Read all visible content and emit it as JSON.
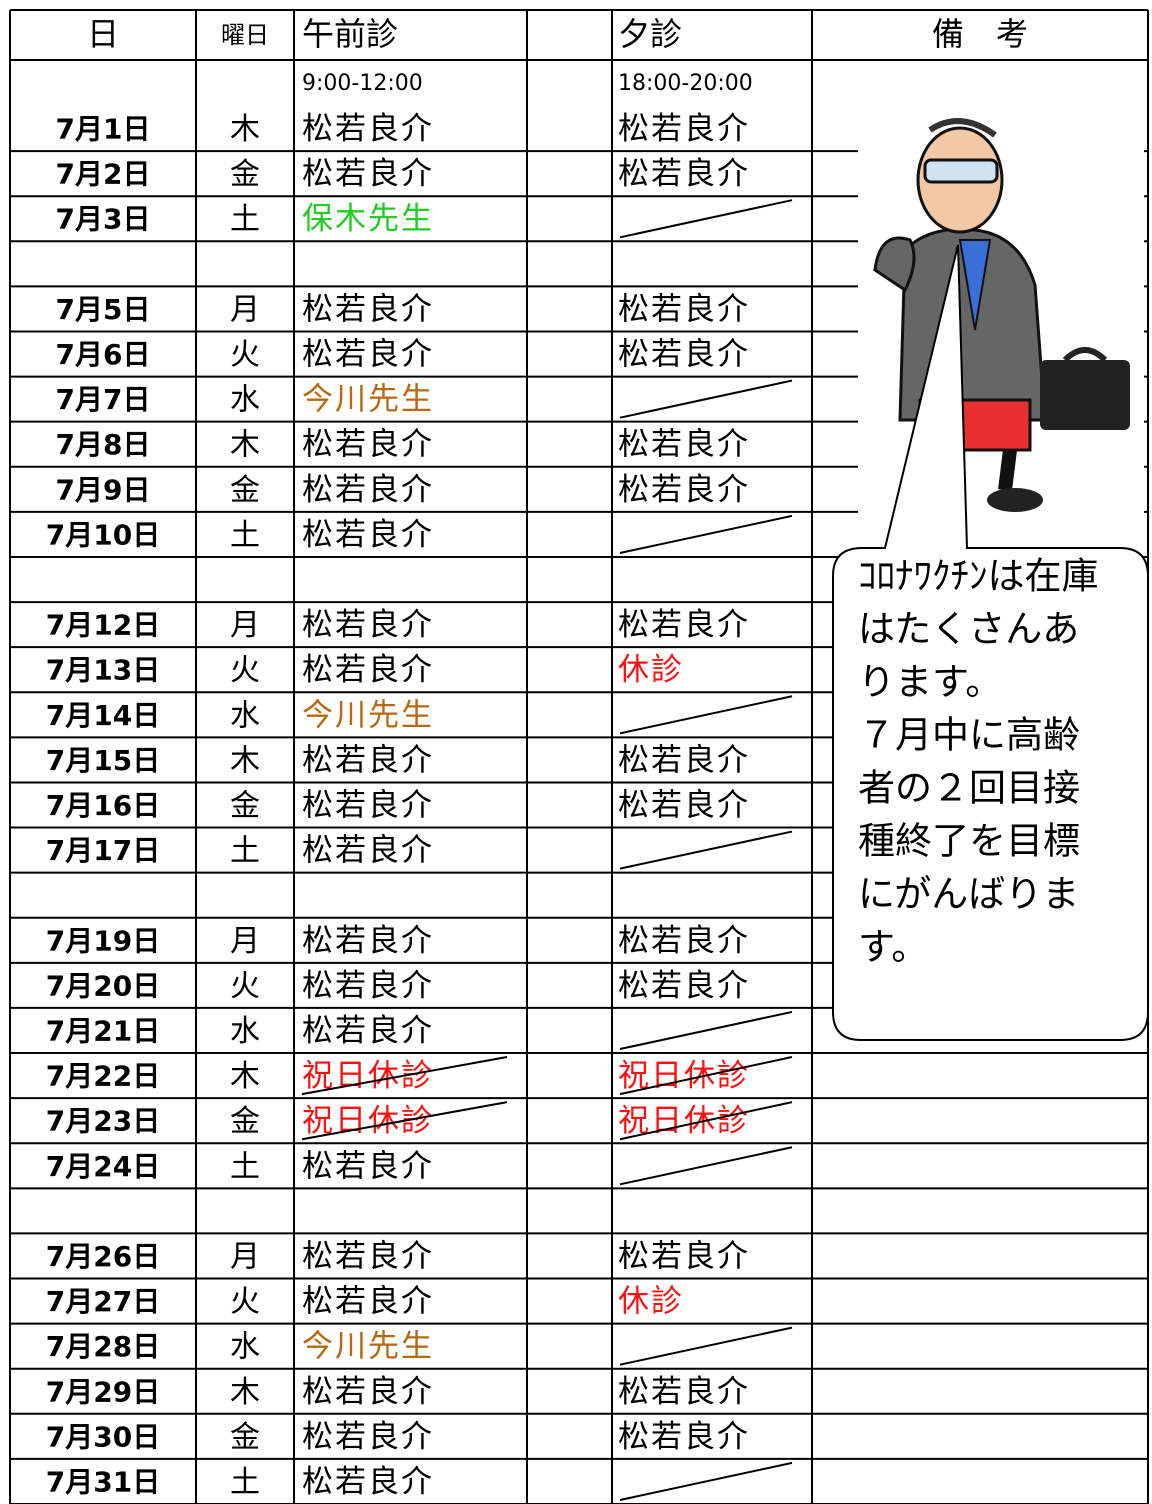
{
  "header": {
    "date": "日",
    "weekday": "曜日",
    "am": "午前診",
    "pm": "夕診",
    "note": "備　考"
  },
  "hours": {
    "am": "9:00-12:00",
    "pm": "18:00-20:00"
  },
  "table": {
    "rows": [
      {
        "date": "7月1日",
        "weekday": "木",
        "am": {
          "text": "松若良介"
        },
        "pm": {
          "text": "松若良介"
        }
      },
      {
        "date": "7月2日",
        "weekday": "金",
        "am": {
          "text": "松若良介"
        },
        "pm": {
          "text": "松若良介"
        }
      },
      {
        "date": "7月3日",
        "weekday": "土",
        "am": {
          "text": "保木先生",
          "color": "#22cc22"
        },
        "pm": {
          "strike": true
        }
      },
      {
        "date": null,
        "weekday": null,
        "am": null,
        "pm": null
      },
      {
        "date": "7月5日",
        "weekday": "月",
        "am": {
          "text": "松若良介"
        },
        "pm": {
          "text": "松若良介"
        }
      },
      {
        "date": "7月6日",
        "weekday": "火",
        "am": {
          "text": "松若良介"
        },
        "pm": {
          "text": "松若良介"
        }
      },
      {
        "date": "7月7日",
        "weekday": "水",
        "am": {
          "text": "今川先生",
          "color": "#b8680f"
        },
        "pm": {
          "strike": true
        }
      },
      {
        "date": "7月8日",
        "weekday": "木",
        "am": {
          "text": "松若良介"
        },
        "pm": {
          "text": "松若良介"
        }
      },
      {
        "date": "7月9日",
        "weekday": "金",
        "am": {
          "text": "松若良介"
        },
        "pm": {
          "text": "松若良介"
        }
      },
      {
        "date": "7月10日",
        "weekday": "土",
        "am": {
          "text": "松若良介"
        },
        "pm": {
          "strike": true
        }
      },
      {
        "date": null,
        "weekday": null,
        "am": null,
        "pm": null
      },
      {
        "date": "7月12日",
        "weekday": "月",
        "am": {
          "text": "松若良介"
        },
        "pm": {
          "text": "松若良介"
        }
      },
      {
        "date": "7月13日",
        "weekday": "火",
        "am": {
          "text": "松若良介"
        },
        "pm": {
          "text": "休診",
          "color": "#ff1010"
        }
      },
      {
        "date": "7月14日",
        "weekday": "水",
        "am": {
          "text": "今川先生",
          "color": "#b8680f"
        },
        "pm": {
          "strike": true
        }
      },
      {
        "date": "7月15日",
        "weekday": "木",
        "am": {
          "text": "松若良介"
        },
        "pm": {
          "text": "松若良介"
        }
      },
      {
        "date": "7月16日",
        "weekday": "金",
        "am": {
          "text": "松若良介"
        },
        "pm": {
          "text": "松若良介"
        }
      },
      {
        "date": "7月17日",
        "weekday": "土",
        "am": {
          "text": "松若良介"
        },
        "pm": {
          "strike": true
        }
      },
      {
        "date": null,
        "weekday": null,
        "am": null,
        "pm": null
      },
      {
        "date": "7月19日",
        "weekday": "月",
        "am": {
          "text": "松若良介"
        },
        "pm": {
          "text": "松若良介"
        }
      },
      {
        "date": "7月20日",
        "weekday": "火",
        "am": {
          "text": "松若良介"
        },
        "pm": {
          "text": "松若良介"
        }
      },
      {
        "date": "7月21日",
        "weekday": "水",
        "am": {
          "text": "松若良介"
        },
        "pm": {
          "strike": true
        }
      },
      {
        "date": "7月22日",
        "weekday": "木",
        "am": {
          "text": "祝日休診",
          "color": "#ff1010",
          "strike": true
        },
        "pm": {
          "text": "祝日休診",
          "color": "#ff1010",
          "strike": true
        }
      },
      {
        "date": "7月23日",
        "weekday": "金",
        "am": {
          "text": "祝日休診",
          "color": "#ff1010",
          "strike": true
        },
        "pm": {
          "text": "祝日休診",
          "color": "#ff1010",
          "strike": true
        }
      },
      {
        "date": "7月24日",
        "weekday": "土",
        "am": {
          "text": "松若良介"
        },
        "pm": {
          "strike": true
        }
      },
      {
        "date": null,
        "weekday": null,
        "am": null,
        "pm": null
      },
      {
        "date": "7月26日",
        "weekday": "月",
        "am": {
          "text": "松若良介"
        },
        "pm": {
          "text": "松若良介"
        }
      },
      {
        "date": "7月27日",
        "weekday": "火",
        "am": {
          "text": "松若良介"
        },
        "pm": {
          "text": "休診",
          "color": "#ff1010"
        }
      },
      {
        "date": "7月28日",
        "weekday": "水",
        "am": {
          "text": "今川先生",
          "color": "#b8680f"
        },
        "pm": {
          "strike": true
        }
      },
      {
        "date": "7月29日",
        "weekday": "木",
        "am": {
          "text": "松若良介"
        },
        "pm": {
          "text": "松若良介"
        }
      },
      {
        "date": "7月30日",
        "weekday": "金",
        "am": {
          "text": "松若良介"
        },
        "pm": {
          "text": "松若良介"
        }
      },
      {
        "date": "7月31日",
        "weekday": "土",
        "am": {
          "text": "松若良介"
        },
        "pm": {
          "strike": true
        }
      }
    ]
  },
  "bubble": {
    "lines": [
      "ｺﾛﾅﾜｸﾁﾝは在庫",
      "はたくさんあ",
      "ります。",
      "７月中に高齢",
      "者の２回目接",
      "種終了を目標",
      "にがんばりま",
      "す。"
    ]
  }
}
